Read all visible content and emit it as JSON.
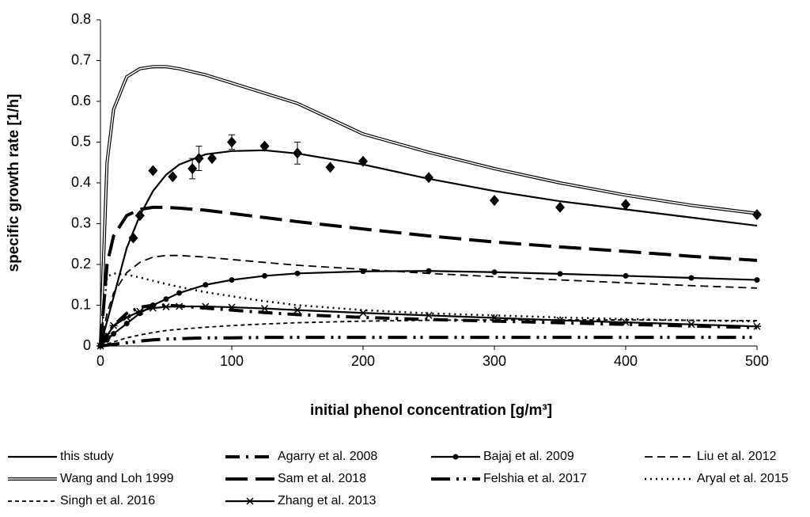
{
  "chart_data": {
    "type": "line",
    "y_label": "specific growth  rate  [1/h]",
    "x_label": "initial phenol concentration  [g/m³]",
    "xlim": [
      0,
      500
    ],
    "xticks": [
      0,
      100,
      200,
      300,
      400,
      500
    ],
    "ylim": [
      0,
      0.8
    ],
    "yticks": [
      0,
      0.1,
      0.2,
      0.3,
      0.4,
      0.5,
      0.6,
      0.7,
      0.8
    ],
    "x": [
      0,
      5,
      10,
      20,
      30,
      40,
      50,
      60,
      80,
      100,
      125,
      150,
      200,
      250,
      300,
      350,
      400,
      450,
      500
    ],
    "series": [
      {
        "name": "this study",
        "color": "#000000",
        "line_style": "solid",
        "values": [
          0,
          0.06,
          0.12,
          0.24,
          0.32,
          0.38,
          0.42,
          0.445,
          0.47,
          0.478,
          0.48,
          0.472,
          0.445,
          0.41,
          0.38,
          0.355,
          0.335,
          0.315,
          0.295
        ]
      },
      {
        "name": "Agarry et al. 2008",
        "color": "#000000",
        "line_style": "dash-dot",
        "values": [
          0,
          0.03,
          0.05,
          0.08,
          0.095,
          0.1,
          0.1,
          0.098,
          0.093,
          0.088,
          0.082,
          0.077,
          0.07,
          0.065,
          0.061,
          0.057,
          0.053,
          0.049,
          0.045
        ]
      },
      {
        "name": "Bajaj et al. 2009",
        "color": "#000000",
        "line_style": "solid",
        "marker": "circle",
        "values": [
          0,
          0.015,
          0.03,
          0.055,
          0.08,
          0.1,
          0.115,
          0.13,
          0.15,
          0.162,
          0.172,
          0.178,
          0.183,
          0.184,
          0.181,
          0.177,
          0.172,
          0.167,
          0.162
        ]
      },
      {
        "name": "Liu et al. 2012",
        "color": "#000000",
        "line_style": "dash",
        "values": [
          0,
          0.08,
          0.13,
          0.18,
          0.205,
          0.218,
          0.222,
          0.222,
          0.218,
          0.212,
          0.205,
          0.198,
          0.188,
          0.178,
          0.17,
          0.162,
          0.155,
          0.148,
          0.142
        ]
      },
      {
        "name": "Wang and Loh 1999",
        "color": "#000000",
        "line_style": "double",
        "values": [
          0,
          0.45,
          0.58,
          0.66,
          0.68,
          0.685,
          0.685,
          0.68,
          0.665,
          0.645,
          0.62,
          0.595,
          0.52,
          0.475,
          0.435,
          0.4,
          0.37,
          0.345,
          0.325
        ]
      },
      {
        "name": "Sam et al. 2018",
        "color": "#000000",
        "line_style": "long-dash",
        "values": [
          0,
          0.2,
          0.27,
          0.32,
          0.335,
          0.34,
          0.34,
          0.338,
          0.333,
          0.325,
          0.315,
          0.305,
          0.287,
          0.27,
          0.255,
          0.243,
          0.232,
          0.22,
          0.21
        ]
      },
      {
        "name": "Felshia et al. 2017",
        "color": "#000000",
        "line_style": "dash-dot-dot",
        "values": [
          0,
          0.002,
          0.004,
          0.008,
          0.012,
          0.015,
          0.017,
          0.018,
          0.02,
          0.02,
          0.021,
          0.021,
          0.021,
          0.021,
          0.021,
          0.021,
          0.021,
          0.021,
          0.021
        ]
      },
      {
        "name": "Aryal et al. 2015",
        "color": "#000000",
        "line_style": "dotted",
        "values": [
          0,
          0.17,
          0.178,
          0.175,
          0.168,
          0.16,
          0.152,
          0.145,
          0.132,
          0.122,
          0.11,
          0.1,
          0.088,
          0.08,
          0.075,
          0.07,
          0.066,
          0.063,
          0.06
        ]
      },
      {
        "name": "Singh et al. 2016",
        "color": "#000000",
        "line_style": "short-dash",
        "values": [
          0,
          0.005,
          0.01,
          0.02,
          0.027,
          0.033,
          0.038,
          0.041,
          0.046,
          0.05,
          0.054,
          0.057,
          0.061,
          0.063,
          0.064,
          0.064,
          0.064,
          0.063,
          0.062
        ]
      },
      {
        "name": "Zhang et al. 2013",
        "color": "#000000",
        "line_style": "solid",
        "marker": "asterisk",
        "values": [
          0,
          0.025,
          0.05,
          0.07,
          0.085,
          0.093,
          0.096,
          0.097,
          0.097,
          0.095,
          0.092,
          0.088,
          0.081,
          0.075,
          0.069,
          0.063,
          0.058,
          0.053,
          0.048
        ]
      }
    ],
    "points": {
      "color": "#000000",
      "x": [
        25,
        30,
        40,
        55,
        70,
        75,
        85,
        100,
        125,
        150,
        175,
        200,
        250,
        300,
        350,
        400,
        500
      ],
      "values": [
        0.265,
        0.32,
        0.43,
        0.415,
        0.435,
        0.46,
        0.46,
        0.5,
        0.49,
        0.473,
        0.438,
        0.453,
        0.413,
        0.357,
        0.34,
        0.347,
        0.322
      ],
      "errors": [
        0,
        0,
        0,
        0,
        0.025,
        0.03,
        0,
        0.018,
        0,
        0.027,
        0,
        0,
        0,
        0,
        0,
        0,
        0
      ]
    }
  }
}
